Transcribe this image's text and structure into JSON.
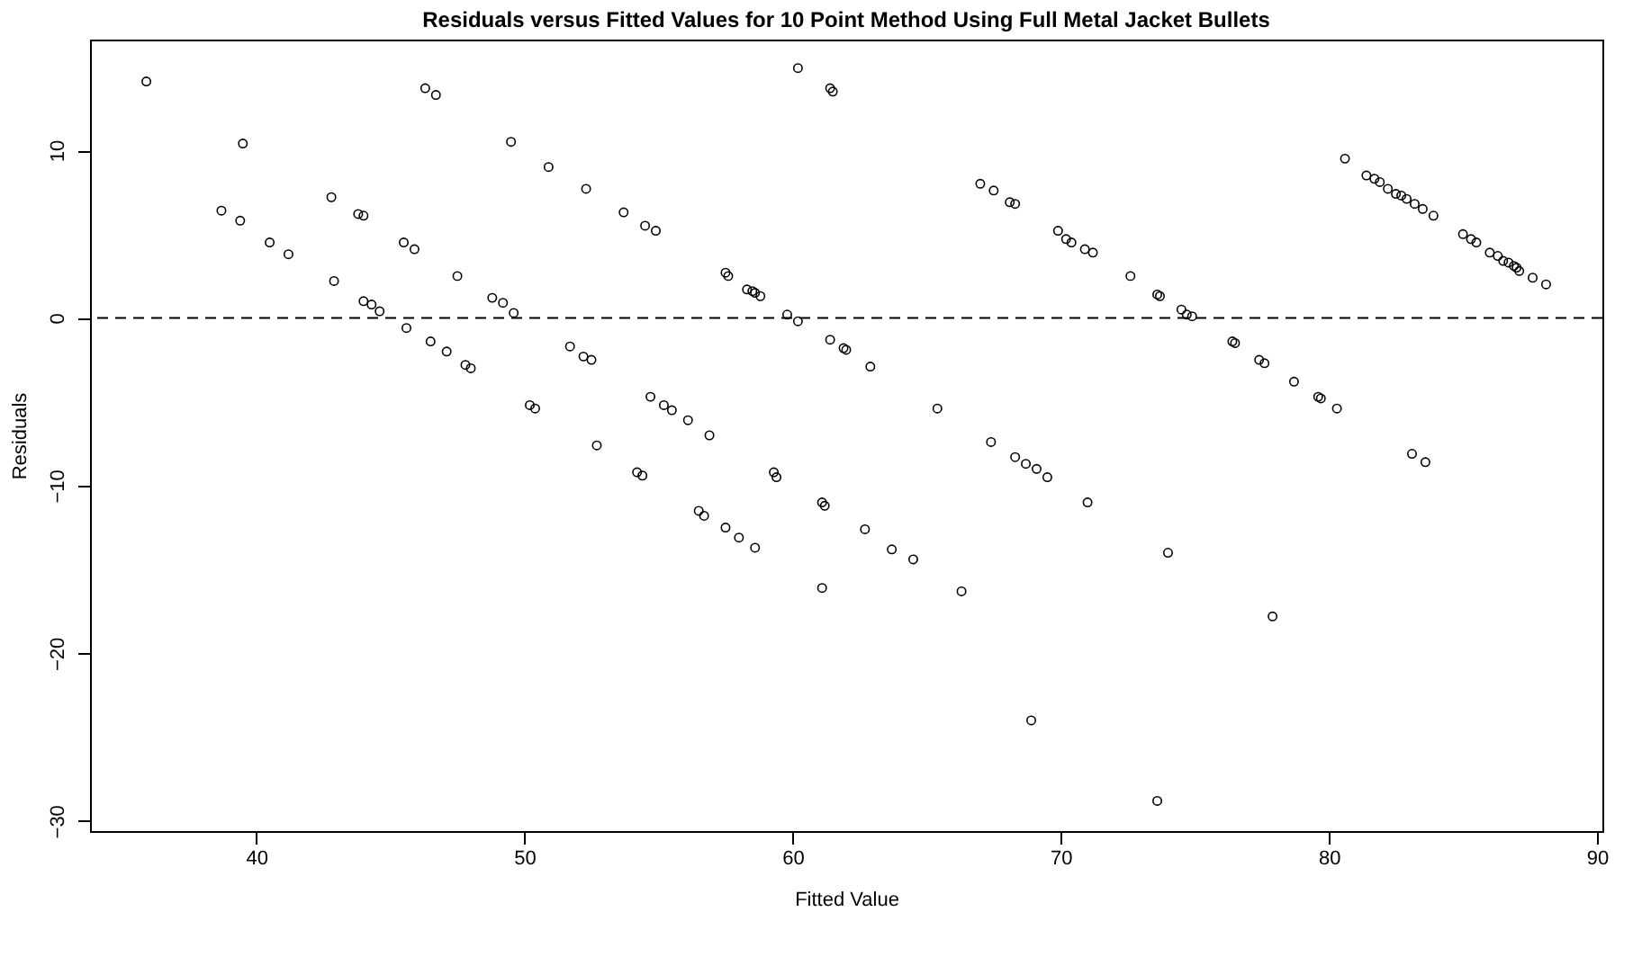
{
  "chart_data": {
    "type": "scatter",
    "title": "Residuals versus Fitted Values for 10 Point Method Using Full Metal Jacket Bullets",
    "xlabel": "Fitted Value",
    "ylabel": "Residuals",
    "xlim": [
      33.8,
      90.2
    ],
    "xticks": [
      40,
      50,
      60,
      70,
      80,
      90
    ],
    "ylim": [
      -30.6,
      16.6
    ],
    "yticks": [
      -30,
      -20,
      -10,
      0,
      10
    ],
    "grid": false,
    "marker": "circle",
    "ref_lines": [
      {
        "axis": "y",
        "value": 0,
        "line_style": "dashed",
        "color": "#000000"
      }
    ],
    "series": [
      {
        "color": "#000000",
        "x": [
          35.9,
          38.7,
          39.4,
          39.5,
          40.5,
          41.2,
          42.8,
          42.9,
          43.8,
          44.0,
          44.0,
          44.3,
          44.6,
          45.6,
          45.5,
          45.9,
          46.5,
          46.3,
          46.7,
          47.1,
          47.5,
          47.8,
          48.0,
          48.8,
          49.2,
          49.5,
          49.6,
          50.2,
          50.4,
          50.9,
          51.7,
          52.2,
          52.5,
          52.3,
          52.7,
          53.7,
          54.5,
          54.9,
          54.2,
          54.4,
          54.7,
          55.2,
          55.5,
          56.1,
          56.5,
          56.7,
          56.9,
          57.5,
          58.0,
          58.6,
          57.5,
          57.6,
          58.3,
          58.5,
          58.6,
          58.8,
          59.3,
          59.4,
          61.1,
          61.2,
          59.8,
          60.2,
          60.2,
          61.4,
          61.5,
          61.4,
          61.9,
          62.0,
          62.9,
          61.1,
          62.7,
          63.7,
          64.5,
          66.3,
          68.9,
          71.0,
          74.0,
          73.6,
          77.9,
          65.4,
          67.4,
          68.3,
          68.7,
          69.1,
          69.5,
          67.0,
          67.5,
          68.1,
          68.3,
          69.9,
          70.2,
          70.4,
          70.9,
          71.2,
          72.6,
          73.6,
          73.7,
          74.5,
          74.7,
          74.9,
          76.4,
          76.5,
          77.4,
          77.6,
          78.7,
          79.6,
          79.7,
          80.3,
          83.1,
          83.6,
          80.6,
          81.4,
          81.7,
          81.9,
          82.2,
          82.5,
          82.7,
          82.9,
          83.2,
          83.5,
          83.9,
          85.0,
          85.3,
          85.5,
          86.0,
          86.3,
          86.5,
          86.7,
          86.9,
          87.0,
          87.1,
          87.6,
          88.1
        ],
        "values": [
          14.1,
          6.4,
          5.8,
          10.4,
          4.5,
          3.8,
          7.2,
          2.2,
          6.2,
          6.1,
          1.0,
          0.8,
          0.4,
          -0.6,
          4.5,
          4.1,
          -1.4,
          13.7,
          13.3,
          -2.0,
          2.5,
          -2.8,
          -3.0,
          1.2,
          0.9,
          10.5,
          0.3,
          -5.2,
          -5.4,
          9.0,
          -1.7,
          -2.3,
          -2.5,
          7.7,
          -7.6,
          6.3,
          5.5,
          5.2,
          -9.2,
          -9.4,
          -4.7,
          -5.2,
          -5.5,
          -6.1,
          -11.5,
          -11.8,
          -7.0,
          -12.5,
          -13.1,
          -13.7,
          2.7,
          2.5,
          1.7,
          1.6,
          1.5,
          1.3,
          -9.2,
          -9.5,
          -11.0,
          -11.2,
          0.2,
          -0.2,
          14.9,
          13.7,
          13.5,
          -1.3,
          -1.8,
          -1.9,
          -2.9,
          -16.1,
          -12.6,
          -13.8,
          -14.4,
          -16.3,
          -24.0,
          -11.0,
          -14.0,
          -28.8,
          -17.8,
          -5.4,
          -7.4,
          -8.3,
          -8.7,
          -9.0,
          -9.5,
          8.0,
          7.6,
          6.9,
          6.8,
          5.2,
          4.7,
          4.5,
          4.1,
          3.9,
          2.5,
          1.4,
          1.3,
          0.5,
          0.2,
          0.1,
          -1.4,
          -1.5,
          -2.5,
          -2.7,
          -3.8,
          -4.7,
          -4.8,
          -5.4,
          -8.1,
          -8.6,
          9.5,
          8.5,
          8.3,
          8.1,
          7.7,
          7.4,
          7.3,
          7.1,
          6.8,
          6.5,
          6.1,
          5.0,
          4.7,
          4.5,
          3.9,
          3.7,
          3.4,
          3.3,
          3.1,
          3.0,
          2.8,
          2.4,
          2.0
        ]
      }
    ]
  }
}
